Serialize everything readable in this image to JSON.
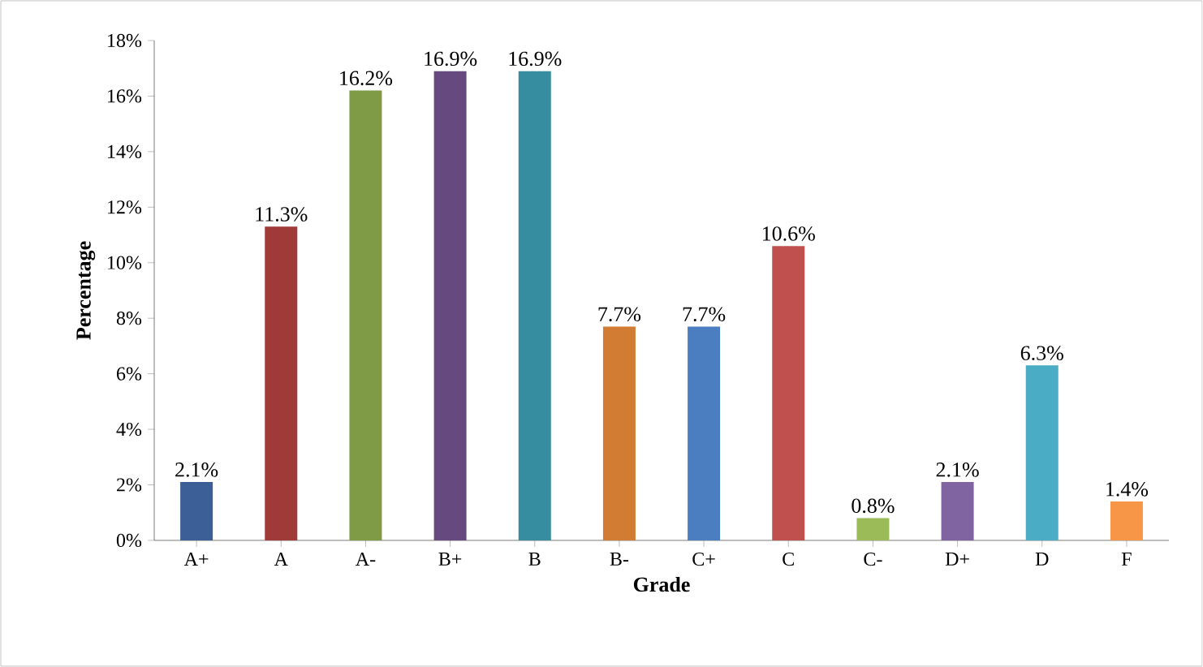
{
  "chart_data": {
    "type": "bar",
    "xlabel": "Grade",
    "ylabel": "Percentage",
    "categories": [
      "A+",
      "A",
      "A-",
      "B+",
      "B",
      "B-",
      "C+",
      "C",
      "C-",
      "D+",
      "D",
      "F"
    ],
    "values": [
      2.1,
      11.3,
      16.2,
      16.9,
      16.9,
      7.7,
      7.7,
      10.6,
      0.8,
      2.1,
      6.3,
      1.4
    ],
    "value_labels": [
      "2.1%",
      "11.3%",
      "16.2%",
      "16.9%",
      "16.9%",
      "7.7%",
      "7.7%",
      "10.6%",
      "0.8%",
      "2.1%",
      "6.3%",
      "1.4%"
    ],
    "colors": [
      "#3b5f96",
      "#a03a38",
      "#7f9b45",
      "#66497f",
      "#378da0",
      "#d27b33",
      "#4a7ec0",
      "#c0504d",
      "#9bbb59",
      "#8064a2",
      "#4bacc6",
      "#f79646"
    ],
    "ylim": [
      0,
      18
    ],
    "yticks": [
      {
        "value": 0,
        "label": "0%"
      },
      {
        "value": 2,
        "label": "2%"
      },
      {
        "value": 4,
        "label": "4%"
      },
      {
        "value": 6,
        "label": "6%"
      },
      {
        "value": 8,
        "label": "8%"
      },
      {
        "value": 10,
        "label": "10%"
      },
      {
        "value": 12,
        "label": "12%"
      },
      {
        "value": 14,
        "label": "14%"
      },
      {
        "value": 16,
        "label": "16%"
      },
      {
        "value": 18,
        "label": "18%"
      }
    ],
    "grid": false
  }
}
